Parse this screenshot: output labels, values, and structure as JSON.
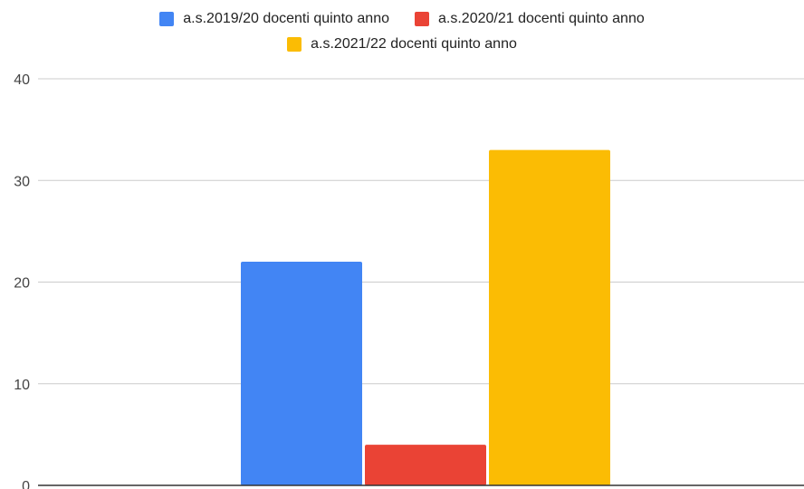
{
  "chart_data": {
    "type": "bar",
    "categories": [
      ""
    ],
    "series": [
      {
        "name": "a.s.2019/20 docenti quinto anno",
        "values": [
          22
        ],
        "color": "#4285f4"
      },
      {
        "name": "a.s.2020/21 docenti quinto anno",
        "values": [
          4
        ],
        "color": "#ea4335"
      },
      {
        "name": "a.s.2021/22 docenti quinto anno",
        "values": [
          33
        ],
        "color": "#fbbc04"
      }
    ],
    "title": "",
    "xlabel": "",
    "ylabel": "",
    "ylim": [
      0,
      40
    ],
    "yticks": [
      0,
      10,
      20,
      30,
      40
    ],
    "grid": true,
    "legend_position": "top"
  }
}
